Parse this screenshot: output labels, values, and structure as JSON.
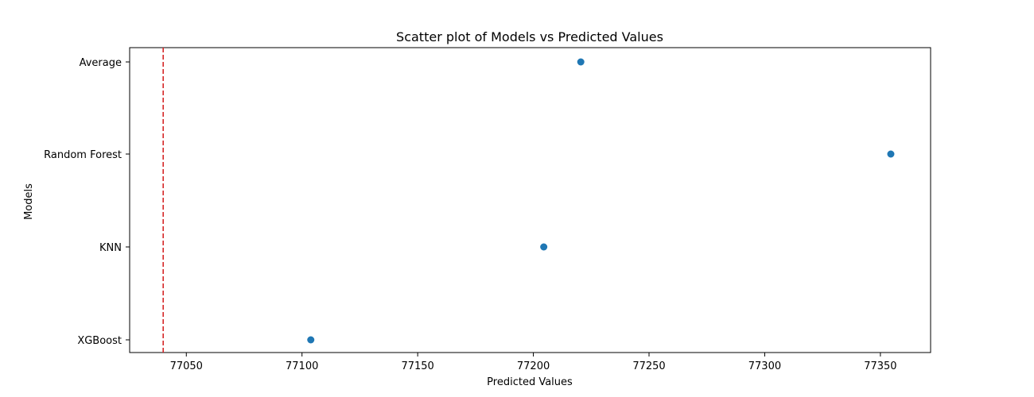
{
  "chart_data": {
    "type": "scatter",
    "title": "Scatter plot of Models vs Predicted Values",
    "xlabel": "Predicted Values",
    "ylabel": "Models",
    "categories": [
      "XGBoost",
      "KNN",
      "Random Forest",
      "Average"
    ],
    "points": [
      {
        "model": "Average",
        "value": 77220.5
      },
      {
        "model": "Random Forest",
        "value": 77354.5
      },
      {
        "model": "KNN",
        "value": 77204.5
      },
      {
        "model": "XGBoost",
        "value": 77103.8
      }
    ],
    "xlim": [
      77025.5,
      77371.7
    ],
    "xticks": [
      77050,
      77100,
      77150,
      77200,
      77250,
      77300,
      77350
    ],
    "xtick_labels": [
      "77050",
      "77100",
      "77150",
      "77200",
      "77250",
      "77300",
      "77350"
    ],
    "reference_line": {
      "value": 77040,
      "orientation": "vertical",
      "style": "dashed"
    },
    "grid": false,
    "colors": {
      "point": "#1f77b4",
      "reference_line": "#d62728",
      "axes": "#000000"
    }
  }
}
